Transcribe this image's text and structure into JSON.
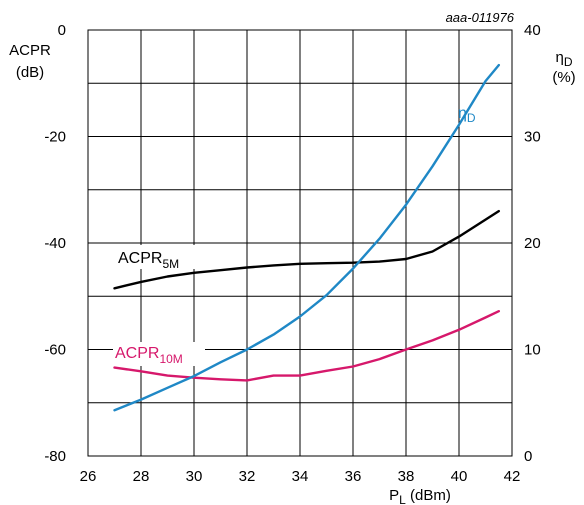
{
  "figure_ref": "aaa-011976",
  "chart_data": {
    "type": "line",
    "xlabel": "P",
    "xlabel_sub": "L",
    "xlabel_unit": " (dBm)",
    "ylabel_left": [
      "ACPR",
      "(dB)"
    ],
    "ylabel_right": [
      "η",
      "D",
      "(%)"
    ],
    "xlim": [
      26,
      42
    ],
    "ylim_left": [
      -80,
      0
    ],
    "ylim_right": [
      0,
      40
    ],
    "x_ticks": [
      "26",
      "28",
      "30",
      "32",
      "34",
      "36",
      "38",
      "40",
      "42"
    ],
    "y_left_ticks": [
      "0",
      "-20",
      "-40",
      "-60",
      "-80"
    ],
    "y_right_ticks": [
      "40",
      "30",
      "20",
      "10",
      "0"
    ],
    "grid": true,
    "series": [
      {
        "name": "ACPR",
        "name_sub": "5M",
        "axis": "left",
        "color": "#000000",
        "x": [
          27,
          28,
          29,
          30,
          31,
          32,
          33,
          34,
          35,
          36,
          37,
          38,
          39,
          40,
          41.5
        ],
        "y": [
          -48.5,
          -47.3,
          -46.3,
          -45.6,
          -45.1,
          -44.6,
          -44.2,
          -43.9,
          -43.8,
          -43.7,
          -43.5,
          -43.0,
          -41.6,
          -38.8,
          -34.0
        ]
      },
      {
        "name": "ACPR",
        "name_sub": "10M",
        "axis": "left",
        "color": "#d6186b",
        "x": [
          27,
          28,
          29,
          30,
          31,
          32,
          33,
          34,
          35,
          36,
          37,
          38,
          39,
          40,
          41,
          41.5
        ],
        "y": [
          -63.4,
          -64.1,
          -64.9,
          -65.3,
          -65.6,
          -65.8,
          -64.9,
          -64.9,
          -64.0,
          -63.2,
          -61.8,
          -60.0,
          -58.3,
          -56.3,
          -54.0,
          -52.8
        ]
      },
      {
        "name": "η",
        "name_sub": "D",
        "axis": "right",
        "color": "#1f88c6",
        "x": [
          27,
          28,
          29,
          30,
          31,
          32,
          33,
          34,
          35,
          36,
          37,
          38,
          39,
          40,
          41,
          41.5
        ],
        "y": [
          4.3,
          5.3,
          6.4,
          7.5,
          8.8,
          10.0,
          11.4,
          13.1,
          15.1,
          17.6,
          20.4,
          23.6,
          27.2,
          31.1,
          35.2,
          36.7
        ]
      }
    ]
  }
}
